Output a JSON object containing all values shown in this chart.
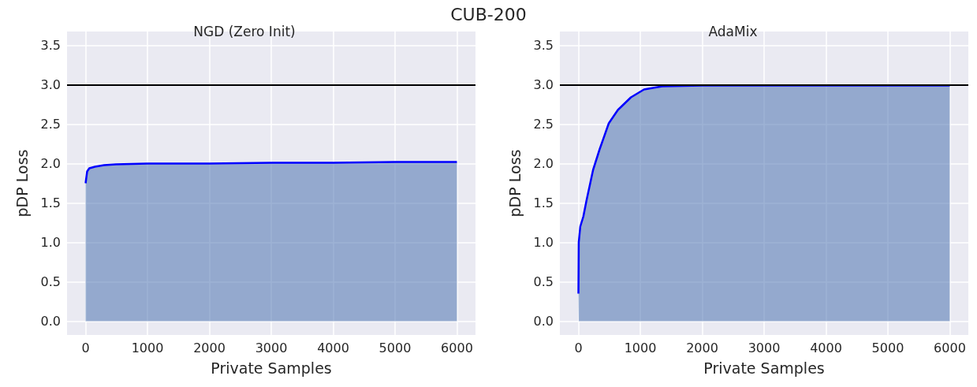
{
  "chart_data": [
    {
      "type": "area",
      "title": "NGD (Zero Init)",
      "xlabel": "Private Samples",
      "ylabel": "pDP Loss",
      "annotations": [
        "CUB-200"
      ],
      "series": [
        {
          "color": "#0000ff",
          "x": [
            0,
            25,
            60,
            152,
            300,
            490,
            1000,
            2000,
            3000,
            4000,
            5000,
            6000
          ],
          "values": [
            1.75,
            1.9,
            1.94,
            1.96,
            1.98,
            1.99,
            2.0,
            2.0,
            2.01,
            2.01,
            2.02,
            2.02
          ]
        }
      ],
      "xlim": [
        -300,
        6300
      ],
      "ylim": [
        -0.175,
        3.675
      ],
      "xticks": [
        0,
        1000,
        2000,
        3000,
        4000,
        5000,
        6000
      ],
      "yticks": [
        {
          "value": 0,
          "label": "0.0"
        },
        {
          "value": 0.5,
          "label": "0.5"
        },
        {
          "value": 1,
          "label": "1.0"
        },
        {
          "value": 1.5,
          "label": "1.5"
        },
        {
          "value": 2,
          "label": "2.0"
        },
        {
          "value": 2.5,
          "label": "2.5"
        },
        {
          "value": 3,
          "label": "3.0"
        },
        {
          "value": 3.5,
          "label": "3.5"
        }
      ],
      "ref_lines": [
        {
          "axis": "y",
          "value": 3.0,
          "color": "#000000"
        }
      ],
      "grid": true
    },
    {
      "type": "area",
      "title": "AdaMix",
      "xlabel": "Private Samples",
      "ylabel": "pDP Loss",
      "series": [
        {
          "color": "#0000ff",
          "x": [
            0,
            5,
            30,
            80,
            130,
            237,
            342,
            490,
            637,
            848,
            1060,
            1354,
            2000,
            3000,
            4000,
            5000,
            6000
          ],
          "values": [
            0.35,
            1.0,
            1.2,
            1.33,
            1.53,
            1.92,
            2.18,
            2.51,
            2.68,
            2.84,
            2.94,
            2.98,
            2.99,
            2.99,
            2.99,
            2.99,
            2.99
          ]
        }
      ],
      "xlim": [
        -300,
        6300
      ],
      "ylim": [
        -0.175,
        3.675
      ],
      "xticks": [
        0,
        1000,
        2000,
        3000,
        4000,
        5000,
        6000
      ],
      "yticks": [
        {
          "value": 0,
          "label": "0.0"
        },
        {
          "value": 0.5,
          "label": "0.5"
        },
        {
          "value": 1,
          "label": "1.0"
        },
        {
          "value": 1.5,
          "label": "1.5"
        },
        {
          "value": 2,
          "label": "2.0"
        },
        {
          "value": 2.5,
          "label": "2.5"
        },
        {
          "value": 3,
          "label": "3.0"
        },
        {
          "value": 3.5,
          "label": "3.5"
        }
      ],
      "ref_lines": [
        {
          "axis": "y",
          "value": 3.0,
          "color": "#000000"
        }
      ],
      "grid": true
    }
  ]
}
